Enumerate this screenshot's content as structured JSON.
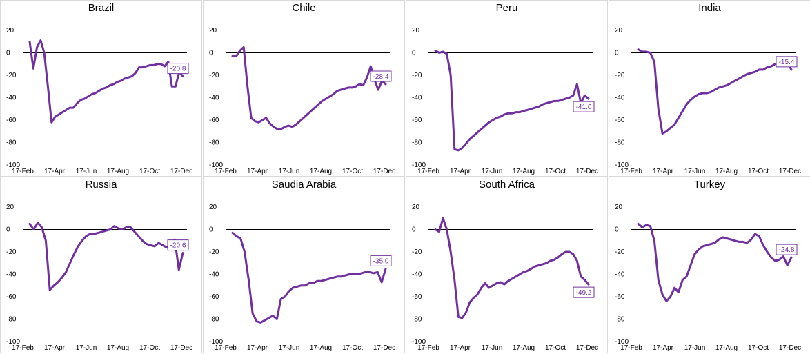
{
  "colors": {
    "line": "#7030a0",
    "zero_line": "#000000",
    "border": "#d9d9d9",
    "text": "#000000"
  },
  "chart_data": [
    {
      "type": "line",
      "title": "Brazil",
      "ylim": [
        -100,
        20
      ],
      "yticks": [
        20,
        0,
        -20,
        -40,
        -60,
        -80,
        -100
      ],
      "x_ticks": [
        "17-Feb",
        "17-Apr",
        "17-Jun",
        "17-Aug",
        "17-Oct",
        "17-Dec"
      ],
      "end_label": "-20.8",
      "y": [
        10,
        -14,
        5,
        11,
        0,
        -30,
        -62,
        -57,
        -55,
        -53,
        -51,
        -49,
        -49,
        -45,
        -42,
        -41,
        -39,
        -37,
        -36,
        -34,
        -32,
        -31,
        -29,
        -28,
        -26,
        -25,
        -23,
        -22,
        -21,
        -18,
        -13,
        -13,
        -12,
        -11,
        -11,
        -10,
        -10,
        -12,
        -8,
        -30,
        -30,
        -17,
        -21
      ]
    },
    {
      "type": "line",
      "title": "Chile",
      "ylim": [
        -100,
        20
      ],
      "yticks": [
        20,
        0,
        -20,
        -40,
        -60,
        -80,
        -100
      ],
      "x_ticks": [
        "17-Feb",
        "17-Apr",
        "17-Jun",
        "17-Aug",
        "17-Oct",
        "17-Dec"
      ],
      "end_label": "-28.4",
      "y": [
        -3,
        -3,
        2,
        5,
        -30,
        -58,
        -61,
        -62,
        -60,
        -58,
        -63,
        -66,
        -68,
        -68,
        -66,
        -65,
        -66,
        -64,
        -61,
        -58,
        -55,
        -52,
        -49,
        -46,
        -43,
        -41,
        -39,
        -37,
        -34,
        -33,
        -32,
        -31,
        -31,
        -30,
        -28,
        -29,
        -22,
        -12,
        -24,
        -33,
        -25,
        -28
      ]
    },
    {
      "type": "line",
      "title": "Peru",
      "ylim": [
        -100,
        20
      ],
      "yticks": [
        20,
        0,
        -20,
        -40,
        -60,
        -80,
        -100
      ],
      "x_ticks": [
        "17-Feb",
        "17-Apr",
        "17-Jun",
        "17-Aug",
        "17-Oct",
        "17-Dec"
      ],
      "end_label": "-41.0",
      "y": [
        2,
        0,
        1,
        -1,
        -20,
        -86,
        -87,
        -85,
        -81,
        -77,
        -74,
        -71,
        -68,
        -65,
        -62,
        -60,
        -58,
        -57,
        -55,
        -54,
        -54,
        -53,
        -53,
        -52,
        -51,
        -50,
        -49,
        -48,
        -46,
        -45,
        -44,
        -43,
        -43,
        -42,
        -41,
        -40,
        -38,
        -28,
        -45,
        -38,
        -41
      ]
    },
    {
      "type": "line",
      "title": "India",
      "ylim": [
        -100,
        20
      ],
      "yticks": [
        20,
        0,
        -20,
        -40,
        -60,
        -80,
        -100
      ],
      "x_ticks": [
        "17-Feb",
        "17-Apr",
        "17-Jun",
        "17-Aug",
        "17-Oct",
        "17-Dec"
      ],
      "end_label": "-15.4",
      "y": [
        3,
        1,
        1,
        0,
        -8,
        -50,
        -72,
        -70,
        -67,
        -64,
        -58,
        -52,
        -46,
        -42,
        -39,
        -37,
        -36,
        -36,
        -35,
        -33,
        -31,
        -30,
        -29,
        -27,
        -25,
        -23,
        -21,
        -19,
        -18,
        -17,
        -15,
        -15,
        -13,
        -12,
        -10,
        -8,
        -8,
        -9,
        -15
      ]
    },
    {
      "type": "line",
      "title": "Russia",
      "ylim": [
        -100,
        20
      ],
      "yticks": [
        20,
        0,
        -20,
        -40,
        -60,
        -80,
        -100
      ],
      "x_ticks": [
        "17-Feb",
        "17-Apr",
        "17-Jun",
        "17-Aug",
        "17-Oct",
        "17-Dec"
      ],
      "end_label": "-20.6",
      "y": [
        5,
        0,
        6,
        2,
        -10,
        -54,
        -50,
        -47,
        -43,
        -38,
        -30,
        -22,
        -15,
        -10,
        -6,
        -4,
        -4,
        -3,
        -2,
        -1,
        0,
        3,
        1,
        0,
        2,
        2,
        -2,
        -6,
        -10,
        -13,
        -14,
        -15,
        -12,
        -14,
        -16,
        -13,
        -9,
        -36,
        -21
      ]
    },
    {
      "type": "line",
      "title": "Saudia Arabia",
      "ylim": [
        -100,
        20
      ],
      "yticks": [
        20,
        0,
        -20,
        -40,
        -60,
        -80,
        -100
      ],
      "x_ticks": [
        "17-Feb",
        "17-Apr",
        "17-Jun",
        "17-Aug",
        "17-Oct",
        "17-Dec"
      ],
      "end_label": "-35.0",
      "y": [
        -3,
        -6,
        -8,
        -20,
        -45,
        -75,
        -82,
        -83,
        -81,
        -79,
        -77,
        -80,
        -62,
        -60,
        -55,
        -52,
        -51,
        -50,
        -50,
        -48,
        -48,
        -46,
        -46,
        -45,
        -44,
        -43,
        -42,
        -42,
        -41,
        -40,
        -40,
        -40,
        -39,
        -38,
        -38,
        -39,
        -38,
        -47,
        -35
      ]
    },
    {
      "type": "line",
      "title": "South Africa",
      "ylim": [
        -100,
        20
      ],
      "yticks": [
        20,
        0,
        -20,
        -40,
        -60,
        -80,
        -100
      ],
      "x_ticks": [
        "17-Feb",
        "17-Apr",
        "17-Jun",
        "17-Aug",
        "17-Oct",
        "17-Dec"
      ],
      "end_label": "-49.2",
      "y": [
        0,
        -2,
        10,
        0,
        -20,
        -45,
        -78,
        -79,
        -74,
        -65,
        -61,
        -58,
        -52,
        -48,
        -52,
        -50,
        -48,
        -47,
        -49,
        -46,
        -44,
        -42,
        -40,
        -38,
        -37,
        -35,
        -33,
        -32,
        -31,
        -30,
        -28,
        -27,
        -25,
        -22,
        -20,
        -20,
        -22,
        -28,
        -42,
        -45,
        -49
      ]
    },
    {
      "type": "line",
      "title": "Turkey",
      "ylim": [
        -100,
        20
      ],
      "yticks": [
        20,
        0,
        -20,
        -40,
        -60,
        -80,
        -100
      ],
      "x_ticks": [
        "17-Feb",
        "17-Apr",
        "17-Jun",
        "17-Aug",
        "17-Oct",
        "17-Dec"
      ],
      "end_label": "-24.8",
      "y": [
        5,
        2,
        4,
        3,
        -10,
        -45,
        -58,
        -64,
        -60,
        -52,
        -56,
        -45,
        -42,
        -32,
        -22,
        -18,
        -15,
        -14,
        -13,
        -12,
        -9,
        -7,
        -8,
        -9,
        -10,
        -11,
        -11,
        -12,
        -9,
        -4,
        -6,
        -14,
        -20,
        -25,
        -28,
        -27,
        -24,
        -32,
        -25
      ]
    }
  ]
}
